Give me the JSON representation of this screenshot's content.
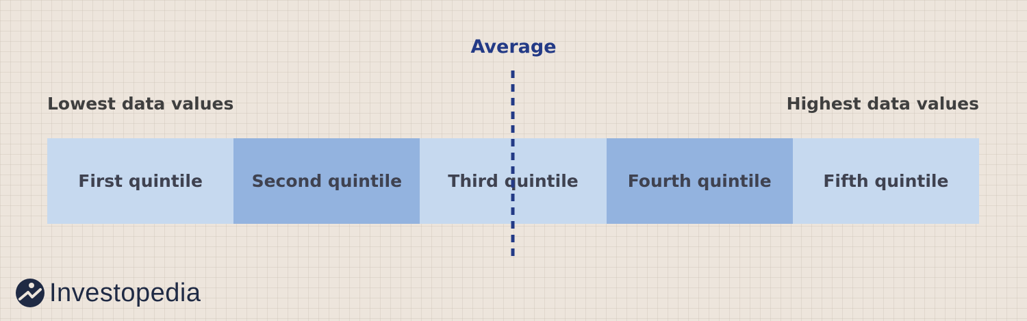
{
  "average_label": "Average",
  "left_label": "Lowest data values",
  "right_label": "Highest data values",
  "quintiles": [
    {
      "label": "First quintile",
      "shade": "light"
    },
    {
      "label": "Second quintile",
      "shade": "dark"
    },
    {
      "label": "Third quintile",
      "shade": "light"
    },
    {
      "label": "Fourth quintile",
      "shade": "dark"
    },
    {
      "label": "Fifth quintile",
      "shade": "light"
    }
  ],
  "logo": {
    "text": "Investopedia",
    "icon": "investopedia-logo-icon"
  },
  "colors": {
    "background": "#ede5dc",
    "light_segment": "#c6d9ef",
    "dark_segment": "#93b3df",
    "average_line": "#233a86",
    "text": "#3f3f3f",
    "logo": "#1f2a44"
  }
}
